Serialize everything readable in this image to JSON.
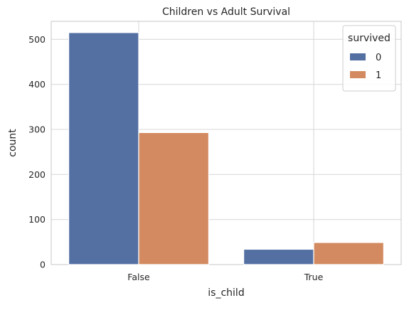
{
  "chart_data": {
    "type": "bar",
    "title": "Children vs Adult Survival",
    "xlabel": "is_child",
    "ylabel": "count",
    "categories": [
      "False",
      "True"
    ],
    "series": [
      {
        "name": "0",
        "values": [
          515,
          34
        ],
        "color": "#5470a3"
      },
      {
        "name": "1",
        "values": [
          293,
          49
        ],
        "color": "#d38a60"
      }
    ],
    "ylim": [
      0,
      540
    ],
    "yticks": [
      0,
      100,
      200,
      300,
      400,
      500
    ],
    "grid": true,
    "legend": {
      "title": "survived",
      "placement": "top-right"
    }
  }
}
